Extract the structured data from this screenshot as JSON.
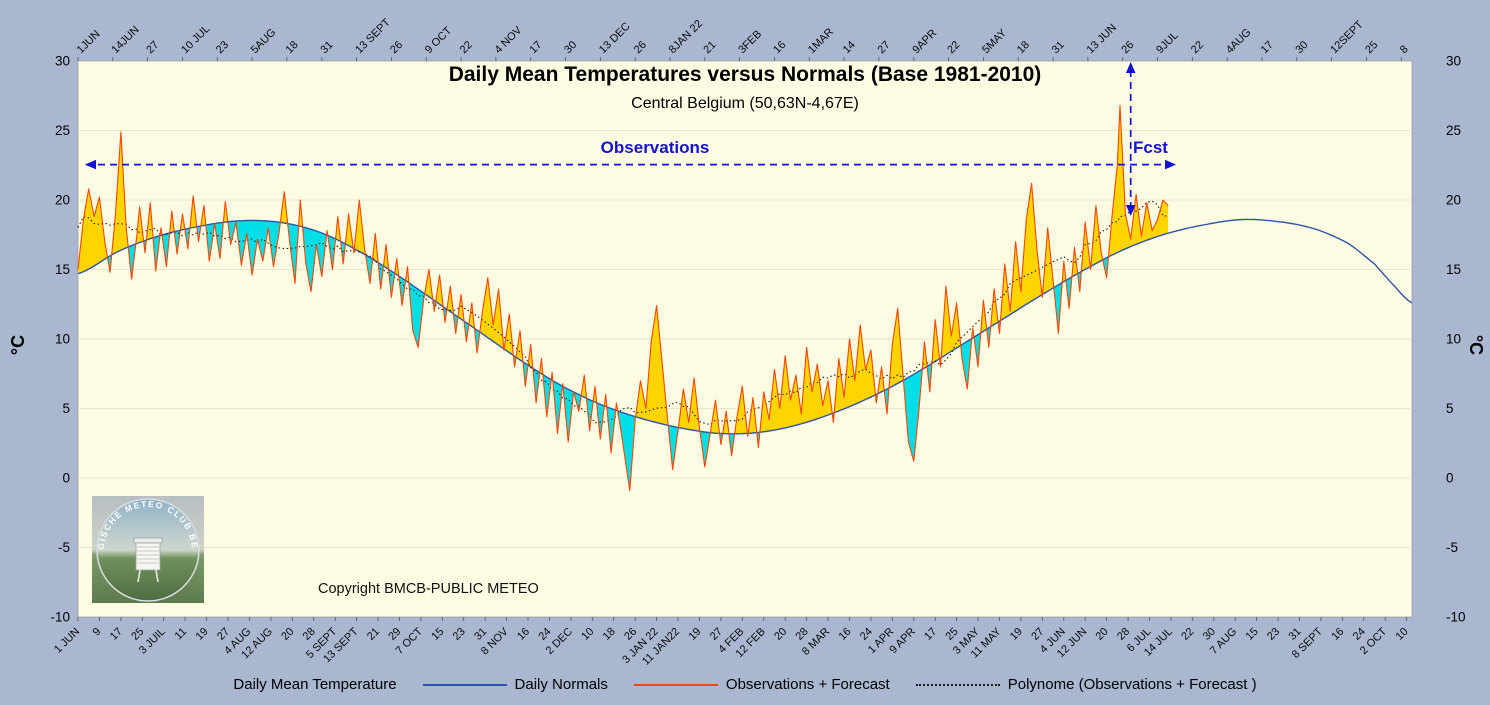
{
  "chart_data": {
    "type": "line",
    "title": "Daily Mean Temperatures versus Normals (Base 1981-2010)",
    "subtitle": "Central Belgium (50,63N-4,67E)",
    "ylabel": "°C",
    "x_unit": "days since 1 JUN 2021",
    "x_range": [
      0,
      498
    ],
    "y_range": [
      -10,
      30
    ],
    "y_ticks": [
      30,
      25,
      20,
      15,
      10,
      5,
      0,
      -5,
      -10
    ],
    "grid": "horizontal",
    "forecast_boundary_day": 393,
    "fill_rules": {
      "above_normal": "#FFD400",
      "below_normal": "#00DFE8"
    },
    "x_axis_top": {
      "step_days": 13,
      "labels": [
        "1JUN",
        "14JUN",
        "27",
        "10 JUL",
        "23",
        "5AUG",
        "18",
        "31",
        "13 SEPT",
        "26",
        "9 OCT",
        "22",
        "4 NOV",
        "17",
        "30",
        "13 DEC",
        "26",
        "8JAN 22",
        "21",
        "3FEB",
        "16",
        "1MAR",
        "14",
        "27",
        "9APR",
        "22",
        "5MAY",
        "18",
        "31",
        "13 JUN",
        "26",
        "9JUL",
        "22",
        "4AUG",
        "17",
        "30",
        "12SEPT",
        "25",
        "8"
      ]
    },
    "x_axis_bottom": {
      "step_days": 8,
      "labels": [
        "1 JUN",
        "9",
        "17",
        "25",
        "3 JUIL",
        "11",
        "19",
        "27",
        "4 AUG",
        "12 AUG",
        "20",
        "28",
        "5 SEPT",
        "13 SEPT",
        "21",
        "29",
        "7 OCT",
        "15",
        "23",
        "31",
        "8 NOV",
        "16",
        "24",
        "2 DEC",
        "10",
        "18",
        "26",
        "3 JAN 22",
        "11 JAN22",
        "19",
        "27",
        "4 FEB",
        "12 FEB",
        "20",
        "28",
        "8 MAR",
        "16",
        "24",
        "1 APR",
        "9 APR",
        "17",
        "25",
        "3 MAY",
        "11 MAY",
        "19",
        "27",
        "4 JUN",
        "12 JUN",
        "20",
        "28",
        "6 JUL",
        "14 JUL",
        "22",
        "30",
        "7 AUG",
        "15",
        "23",
        "31",
        "8 SEPT",
        "16",
        "24",
        "2 OCT",
        "10"
      ]
    },
    "normals": {
      "name": "Daily Normals",
      "points": [
        [
          0,
          14.7
        ],
        [
          15,
          16.3
        ],
        [
          30,
          17.4
        ],
        [
          45,
          18.1
        ],
        [
          60,
          18.5
        ],
        [
          75,
          18.4
        ],
        [
          90,
          17.7
        ],
        [
          105,
          16.3
        ],
        [
          120,
          14.5
        ],
        [
          135,
          12.5
        ],
        [
          150,
          10.5
        ],
        [
          165,
          8.5
        ],
        [
          180,
          6.7
        ],
        [
          195,
          5.3
        ],
        [
          210,
          4.3
        ],
        [
          225,
          3.6
        ],
        [
          240,
          3.2
        ],
        [
          255,
          3.3
        ],
        [
          270,
          3.9
        ],
        [
          285,
          4.9
        ],
        [
          300,
          6.2
        ],
        [
          315,
          7.8
        ],
        [
          330,
          9.6
        ],
        [
          345,
          11.4
        ],
        [
          360,
          13.2
        ],
        [
          375,
          14.9
        ],
        [
          390,
          16.4
        ],
        [
          405,
          17.5
        ],
        [
          420,
          18.2
        ],
        [
          435,
          18.6
        ],
        [
          450,
          18.4
        ],
        [
          462,
          17.9
        ],
        [
          474,
          16.9
        ],
        [
          484,
          15.4
        ],
        [
          491,
          13.9
        ],
        [
          498,
          12.6
        ]
      ]
    },
    "observations": {
      "name": "Observations + Forecast",
      "end_day": 407,
      "points": [
        [
          0,
          15.0
        ],
        [
          2,
          18.6
        ],
        [
          4,
          20.8
        ],
        [
          6,
          18.8
        ],
        [
          8,
          20.2
        ],
        [
          10,
          17.0
        ],
        [
          12,
          14.8
        ],
        [
          14,
          19.0
        ],
        [
          16,
          24.9
        ],
        [
          18,
          18.0
        ],
        [
          20,
          14.3
        ],
        [
          22,
          17.5
        ],
        [
          23,
          19.5
        ],
        [
          25,
          16.2
        ],
        [
          27,
          19.8
        ],
        [
          29,
          14.9
        ],
        [
          31,
          18.0
        ],
        [
          33,
          15.2
        ],
        [
          35,
          19.2
        ],
        [
          37,
          16.1
        ],
        [
          39,
          19.0
        ],
        [
          41,
          16.5
        ],
        [
          43,
          20.3
        ],
        [
          45,
          17.0
        ],
        [
          47,
          19.6
        ],
        [
          49,
          15.6
        ],
        [
          51,
          18.3
        ],
        [
          53,
          15.8
        ],
        [
          55,
          19.9
        ],
        [
          57,
          16.8
        ],
        [
          59,
          18.4
        ],
        [
          61,
          15.3
        ],
        [
          63,
          17.6
        ],
        [
          65,
          14.6
        ],
        [
          67,
          17.2
        ],
        [
          69,
          15.6
        ],
        [
          71,
          18.0
        ],
        [
          73,
          15.2
        ],
        [
          75,
          17.6
        ],
        [
          77,
          20.6
        ],
        [
          79,
          17.0
        ],
        [
          81,
          14.0
        ],
        [
          83,
          20.0
        ],
        [
          85,
          15.5
        ],
        [
          87,
          13.4
        ],
        [
          89,
          16.8
        ],
        [
          91,
          14.5
        ],
        [
          93,
          17.8
        ],
        [
          95,
          15.0
        ],
        [
          97,
          18.8
        ],
        [
          99,
          15.4
        ],
        [
          101,
          19.0
        ],
        [
          103,
          16.2
        ],
        [
          105,
          20.0
        ],
        [
          107,
          16.5
        ],
        [
          109,
          14.0
        ],
        [
          111,
          17.6
        ],
        [
          113,
          13.6
        ],
        [
          115,
          16.8
        ],
        [
          117,
          13.0
        ],
        [
          119,
          15.8
        ],
        [
          121,
          12.4
        ],
        [
          123,
          15.2
        ],
        [
          125,
          10.6
        ],
        [
          127,
          9.4
        ],
        [
          129,
          12.8
        ],
        [
          131,
          15.0
        ],
        [
          133,
          12.0
        ],
        [
          135,
          14.6
        ],
        [
          137,
          11.2
        ],
        [
          139,
          13.8
        ],
        [
          141,
          10.4
        ],
        [
          143,
          13.2
        ],
        [
          145,
          9.8
        ],
        [
          147,
          12.6
        ],
        [
          149,
          9.0
        ],
        [
          151,
          12.0
        ],
        [
          153,
          14.4
        ],
        [
          155,
          11.0
        ],
        [
          157,
          13.6
        ],
        [
          159,
          9.2
        ],
        [
          161,
          11.8
        ],
        [
          163,
          8.0
        ],
        [
          165,
          10.6
        ],
        [
          167,
          6.6
        ],
        [
          169,
          9.6
        ],
        [
          171,
          5.4
        ],
        [
          173,
          8.6
        ],
        [
          175,
          4.4
        ],
        [
          177,
          7.6
        ],
        [
          179,
          3.2
        ],
        [
          181,
          6.8
        ],
        [
          183,
          2.6
        ],
        [
          185,
          6.2
        ],
        [
          187,
          4.8
        ],
        [
          189,
          7.4
        ],
        [
          191,
          3.4
        ],
        [
          193,
          6.6
        ],
        [
          195,
          2.8
        ],
        [
          197,
          6.0
        ],
        [
          199,
          1.8
        ],
        [
          201,
          5.4
        ],
        [
          203,
          3.0
        ],
        [
          205,
          0.4
        ],
        [
          206,
          -0.9
        ],
        [
          208,
          4.2
        ],
        [
          210,
          7.0
        ],
        [
          212,
          5.0
        ],
        [
          214,
          9.8
        ],
        [
          216,
          12.4
        ],
        [
          218,
          8.4
        ],
        [
          220,
          4.4
        ],
        [
          222,
          0.6
        ],
        [
          224,
          3.4
        ],
        [
          226,
          6.4
        ],
        [
          228,
          4.0
        ],
        [
          230,
          7.2
        ],
        [
          232,
          3.6
        ],
        [
          234,
          0.8
        ],
        [
          236,
          3.2
        ],
        [
          238,
          5.6
        ],
        [
          240,
          2.4
        ],
        [
          242,
          4.8
        ],
        [
          244,
          1.6
        ],
        [
          246,
          4.4
        ],
        [
          248,
          6.6
        ],
        [
          250,
          3.0
        ],
        [
          252,
          5.8
        ],
        [
          254,
          2.2
        ],
        [
          256,
          6.2
        ],
        [
          258,
          4.2
        ],
        [
          260,
          7.8
        ],
        [
          262,
          5.0
        ],
        [
          264,
          8.8
        ],
        [
          266,
          5.6
        ],
        [
          268,
          7.4
        ],
        [
          270,
          4.6
        ],
        [
          272,
          9.4
        ],
        [
          274,
          6.2
        ],
        [
          276,
          8.2
        ],
        [
          278,
          5.2
        ],
        [
          280,
          7.0
        ],
        [
          282,
          4.0
        ],
        [
          284,
          8.6
        ],
        [
          286,
          5.8
        ],
        [
          288,
          10.0
        ],
        [
          290,
          7.0
        ],
        [
          292,
          11.0
        ],
        [
          294,
          7.8
        ],
        [
          296,
          9.2
        ],
        [
          298,
          5.4
        ],
        [
          300,
          8.0
        ],
        [
          302,
          4.6
        ],
        [
          304,
          9.6
        ],
        [
          306,
          12.2
        ],
        [
          308,
          7.4
        ],
        [
          310,
          2.6
        ],
        [
          312,
          1.2
        ],
        [
          314,
          5.0
        ],
        [
          316,
          9.8
        ],
        [
          318,
          6.2
        ],
        [
          320,
          11.4
        ],
        [
          322,
          8.0
        ],
        [
          324,
          13.8
        ],
        [
          326,
          10.2
        ],
        [
          328,
          12.6
        ],
        [
          330,
          8.6
        ],
        [
          332,
          6.4
        ],
        [
          334,
          10.8
        ],
        [
          336,
          8.0
        ],
        [
          338,
          12.8
        ],
        [
          340,
          9.4
        ],
        [
          342,
          13.6
        ],
        [
          344,
          10.4
        ],
        [
          346,
          15.4
        ],
        [
          348,
          12.0
        ],
        [
          350,
          17.0
        ],
        [
          352,
          13.4
        ],
        [
          354,
          18.6
        ],
        [
          356,
          21.2
        ],
        [
          358,
          16.4
        ],
        [
          360,
          13.0
        ],
        [
          362,
          18.0
        ],
        [
          364,
          14.2
        ],
        [
          366,
          10.4
        ],
        [
          368,
          15.6
        ],
        [
          370,
          12.2
        ],
        [
          372,
          16.6
        ],
        [
          374,
          13.4
        ],
        [
          376,
          18.4
        ],
        [
          378,
          15.0
        ],
        [
          380,
          19.6
        ],
        [
          382,
          16.2
        ],
        [
          384,
          14.4
        ],
        [
          386,
          18.8
        ],
        [
          388,
          22.5
        ],
        [
          389,
          26.8
        ],
        [
          391,
          19.0
        ],
        [
          393,
          17.2
        ],
        [
          395,
          20.4
        ],
        [
          397,
          17.4
        ],
        [
          399,
          19.8
        ],
        [
          401,
          17.8
        ],
        [
          403,
          18.6
        ],
        [
          405,
          20.0
        ],
        [
          407,
          19.6
        ]
      ]
    },
    "polynome": {
      "name": "Polynome (Observations + Forecast )",
      "method": "centered moving average of observations"
    }
  },
  "annotations": {
    "observations_label": "Observations",
    "forecast_label": "Fcst"
  },
  "legend": {
    "series_name": "Daily Mean Temperature",
    "normals": "Daily Normals",
    "observations": "Observations + Forecast",
    "polynome": "Polynome (Observations + Forecast )"
  },
  "footer": {
    "copyright": "Copyright BMCB-PUBLIC METEO"
  },
  "logo": {
    "text": "BELGISCHE METEO CLUB BELGE"
  },
  "colors": {
    "frame": "#A9B7D1",
    "plot_bg": "#FDFCE3",
    "grid": "#E9E5CB",
    "normals_line": "#2D55A8",
    "observations_line": "#FF4500",
    "polynome_line": "#1A1A1A",
    "annotation_blue": "#1212D0",
    "fill_above": "#FFD400",
    "fill_below": "#00DFE8"
  }
}
